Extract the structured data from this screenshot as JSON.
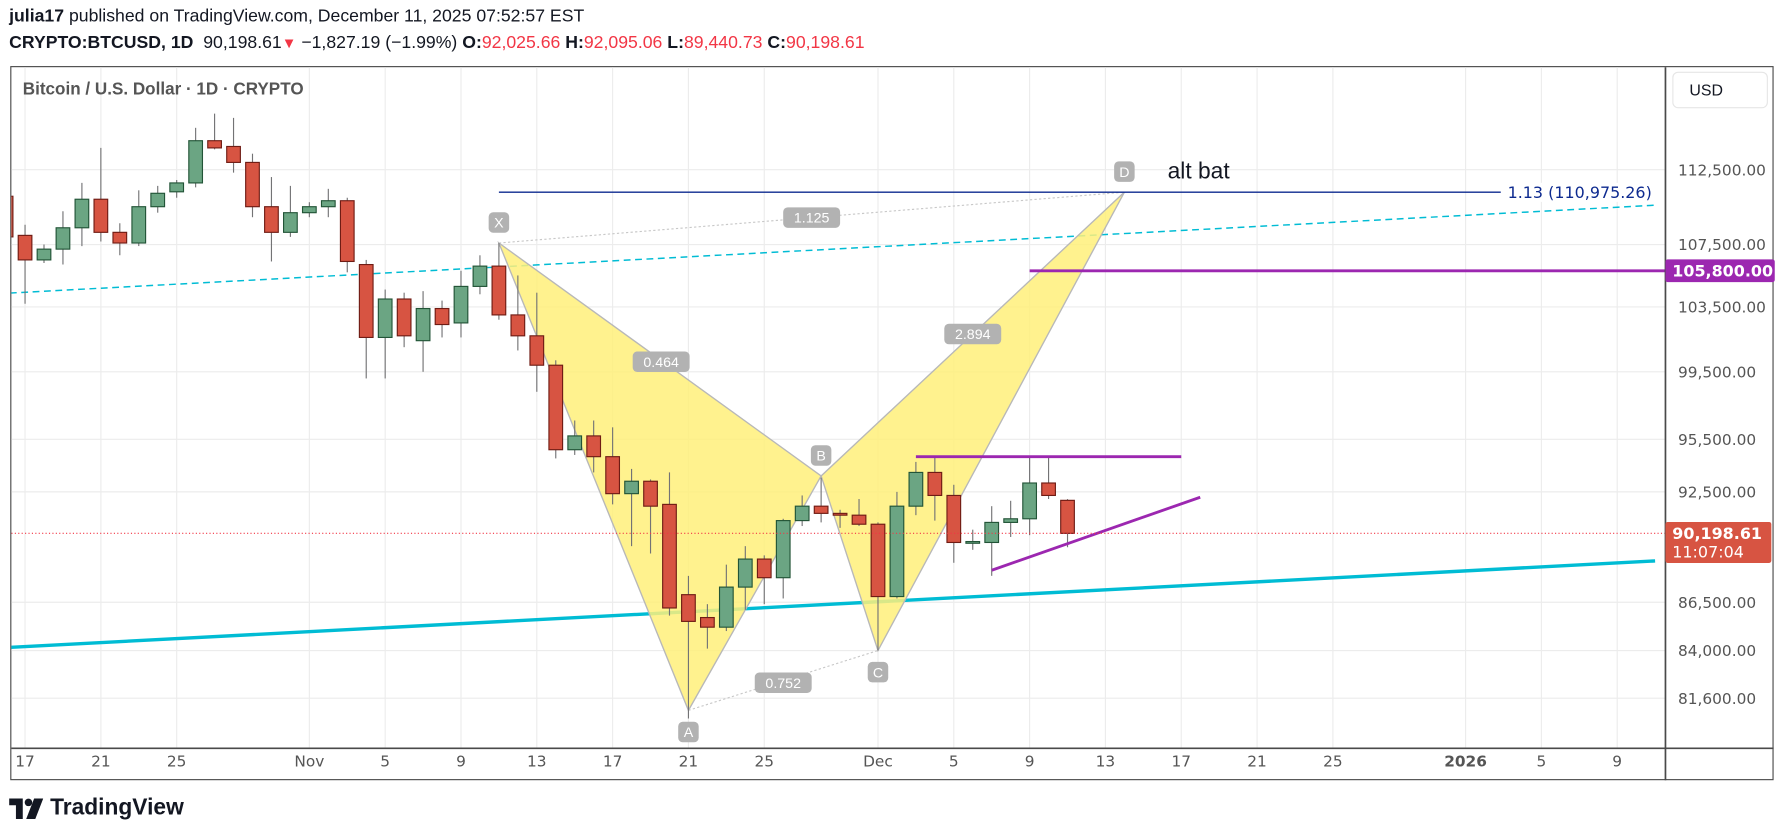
{
  "header": {
    "author": "julia17",
    "published_text": "published on TradingView.com, December 11, 2025 07:52:57 EST",
    "symbol": "CRYPTO:BTCUSD, 1D",
    "last_price": "90,198.61",
    "change": "−1,827.19 (−1.99%)",
    "open_label": "O:",
    "open": "92,025.66",
    "high_label": "H:",
    "high": "92,095.06",
    "low_label": "L:",
    "low": "89,440.73",
    "close_label": "C:",
    "close": "90,198.61"
  },
  "legend": "Bitcoin / U.S. Dollar · 1D · CRYPTO",
  "currency": "USD",
  "brand": "TradingView",
  "colors": {
    "up": "#6ba583",
    "up_border": "#225437",
    "down": "#d75442",
    "down_border": "#6f1c14",
    "purple": "#9c27b0",
    "cyan": "#00bcd4",
    "blue": "#0d2a8f",
    "pattern": "#fff07a",
    "last": "#f23645"
  },
  "chart_data": {
    "type": "candlestick",
    "scale": "log",
    "price_ticks": [
      112500,
      107500,
      103500,
      99500,
      95500,
      92500,
      86500,
      84000,
      81600
    ],
    "price_tick_labels": [
      "112,500.00",
      "107,500.00",
      "103,500.00",
      "99,500.00",
      "95,500.00",
      "92,500.00",
      "86,500.00",
      "84,000.00",
      "81,600.00"
    ],
    "time_ticks": [
      {
        "date": "2025-10-17",
        "label": "17"
      },
      {
        "date": "2025-10-21",
        "label": "21"
      },
      {
        "date": "2025-10-25",
        "label": "25"
      },
      {
        "date": "2025-11-01",
        "label": "Nov"
      },
      {
        "date": "2025-11-05",
        "label": "5"
      },
      {
        "date": "2025-11-09",
        "label": "9"
      },
      {
        "date": "2025-11-13",
        "label": "13"
      },
      {
        "date": "2025-11-17",
        "label": "17"
      },
      {
        "date": "2025-11-21",
        "label": "21"
      },
      {
        "date": "2025-11-25",
        "label": "25"
      },
      {
        "date": "2025-12-01",
        "label": "Dec"
      },
      {
        "date": "2025-12-05",
        "label": "5"
      },
      {
        "date": "2025-12-09",
        "label": "9"
      },
      {
        "date": "2025-12-13",
        "label": "13"
      },
      {
        "date": "2025-12-17",
        "label": "17"
      },
      {
        "date": "2025-12-21",
        "label": "21"
      },
      {
        "date": "2025-12-25",
        "label": "25"
      },
      {
        "date": "2026-01-01",
        "label": "2026"
      },
      {
        "date": "2026-01-05",
        "label": "5"
      },
      {
        "date": "2026-01-09",
        "label": "9"
      }
    ],
    "ohlc_columns": [
      "date",
      "open",
      "high",
      "low",
      "close"
    ],
    "ohlc": [
      [
        "2025-10-16",
        110700,
        111600,
        107500,
        108000
      ],
      [
        "2025-10-17",
        108100,
        108800,
        103700,
        106500
      ],
      [
        "2025-10-18",
        106500,
        107500,
        106300,
        107200
      ],
      [
        "2025-10-19",
        107200,
        109700,
        106200,
        108600
      ],
      [
        "2025-10-20",
        108600,
        111600,
        107400,
        110500
      ],
      [
        "2025-10-21",
        110500,
        114000,
        107700,
        108300
      ],
      [
        "2025-10-22",
        108300,
        108900,
        106800,
        107600
      ],
      [
        "2025-10-23",
        107600,
        111100,
        107400,
        110000
      ],
      [
        "2025-10-24",
        110000,
        111400,
        109600,
        110900
      ],
      [
        "2025-10-25",
        111000,
        111800,
        110600,
        111600
      ],
      [
        "2025-10-26",
        111600,
        115400,
        111300,
        114500
      ],
      [
        "2025-10-27",
        114500,
        116400,
        113900,
        114000
      ],
      [
        "2025-10-28",
        114100,
        116100,
        112300,
        113000
      ],
      [
        "2025-10-29",
        113000,
        113600,
        109300,
        110000
      ],
      [
        "2025-10-30",
        110000,
        112000,
        106400,
        108300
      ],
      [
        "2025-10-31",
        108300,
        111400,
        108000,
        109600
      ],
      [
        "2025-11-01",
        109600,
        110300,
        109300,
        110000
      ],
      [
        "2025-11-02",
        110000,
        111200,
        109300,
        110400
      ],
      [
        "2025-11-03",
        110400,
        110600,
        105700,
        106400
      ],
      [
        "2025-11-04",
        106200,
        106500,
        99100,
        101600
      ],
      [
        "2025-11-05",
        101600,
        104600,
        99100,
        104000
      ],
      [
        "2025-11-06",
        104000,
        104400,
        101000,
        101700
      ],
      [
        "2025-11-07",
        101400,
        104500,
        99500,
        103400
      ],
      [
        "2025-11-08",
        103400,
        103900,
        101600,
        102400
      ],
      [
        "2025-11-09",
        102500,
        105800,
        101600,
        104800
      ],
      [
        "2025-11-10",
        104800,
        106800,
        104300,
        106100
      ],
      [
        "2025-11-11",
        106100,
        107600,
        102700,
        103000
      ],
      [
        "2025-11-12",
        103000,
        105500,
        100800,
        101700
      ],
      [
        "2025-11-13",
        101700,
        104400,
        98300,
        99900
      ],
      [
        "2025-11-14",
        99900,
        100200,
        94400,
        94900
      ],
      [
        "2025-11-15",
        94900,
        96600,
        94600,
        95700
      ],
      [
        "2025-11-16",
        95700,
        96600,
        93600,
        94500
      ],
      [
        "2025-11-17",
        94500,
        96200,
        91800,
        92400
      ],
      [
        "2025-11-18",
        92400,
        93800,
        89500,
        93100
      ],
      [
        "2025-11-19",
        93100,
        93200,
        89100,
        91700
      ],
      [
        "2025-11-20",
        91800,
        93600,
        85800,
        86200
      ],
      [
        "2025-11-21",
        86900,
        87900,
        80600,
        85500
      ],
      [
        "2025-11-22",
        85700,
        86400,
        84100,
        85200
      ],
      [
        "2025-11-23",
        85200,
        88500,
        85000,
        87300
      ],
      [
        "2025-11-24",
        87300,
        89500,
        86100,
        88800
      ],
      [
        "2025-11-25",
        88800,
        89000,
        86400,
        87800
      ],
      [
        "2025-11-26",
        87800,
        91000,
        86700,
        90900
      ],
      [
        "2025-11-27",
        90900,
        92300,
        90600,
        91700
      ],
      [
        "2025-11-28",
        91700,
        93300,
        90800,
        91300
      ],
      [
        "2025-11-29",
        91300,
        91500,
        90500,
        91200
      ],
      [
        "2025-11-30",
        91200,
        92100,
        90600,
        90700
      ],
      [
        "2025-12-01",
        90700,
        90800,
        84000,
        86800
      ],
      [
        "2025-12-02",
        86800,
        92500,
        86700,
        91700
      ],
      [
        "2025-12-03",
        91700,
        94200,
        91200,
        93600
      ],
      [
        "2025-12-04",
        93600,
        94500,
        90900,
        92300
      ],
      [
        "2025-12-05",
        92300,
        92900,
        88600,
        89700
      ],
      [
        "2025-12-06",
        89700,
        90400,
        89300,
        89750
      ],
      [
        "2025-12-07",
        89700,
        91700,
        87900,
        90800
      ],
      [
        "2025-12-08",
        90800,
        92000,
        90000,
        91000
      ],
      [
        "2025-12-09",
        91000,
        94500,
        90100,
        93000
      ],
      [
        "2025-12-10",
        93000,
        94500,
        92100,
        92300
      ],
      [
        "2025-12-11",
        92025.66,
        92095.06,
        89440.73,
        90198.61
      ]
    ],
    "last_price_label": "90,198.61",
    "countdown": "11:07:04",
    "harmonic": {
      "name": "alt bat",
      "points": [
        {
          "label": "X",
          "date": "2025-11-11",
          "price": 107600
        },
        {
          "label": "A",
          "date": "2025-11-21",
          "price": 81000
        },
        {
          "label": "B",
          "date": "2025-11-28",
          "price": 93400
        },
        {
          "label": "C",
          "date": "2025-12-01",
          "price": 84000
        },
        {
          "label": "D",
          "date": "2025-12-14",
          "price": 110975.26
        }
      ],
      "ratios": {
        "XB": "0.464",
        "AC": "0.752",
        "BD": "2.894",
        "XD": "1.125"
      }
    },
    "level_line": {
      "start": "2025-11-11",
      "price": 110975.26,
      "label": "1.13 (110,975.26)"
    },
    "purple_level": {
      "start": "2025-12-09",
      "price": 105800,
      "label": "105,800.00"
    },
    "purple_resistance": {
      "start": "2025-12-03",
      "end": "2025-12-17",
      "price": 94500
    },
    "purple_trend": {
      "start": [
        "2025-12-07",
        88200
      ],
      "end": [
        "2025-12-18",
        92200
      ]
    },
    "cyan_dashed": {
      "start": [
        "2025-10-15",
        104300
      ],
      "end": [
        "2026-01-11",
        110100
      ]
    },
    "cyan_support": {
      "start": [
        "2025-10-15",
        84100
      ],
      "end": [
        "2026-01-11",
        88700
      ]
    }
  }
}
